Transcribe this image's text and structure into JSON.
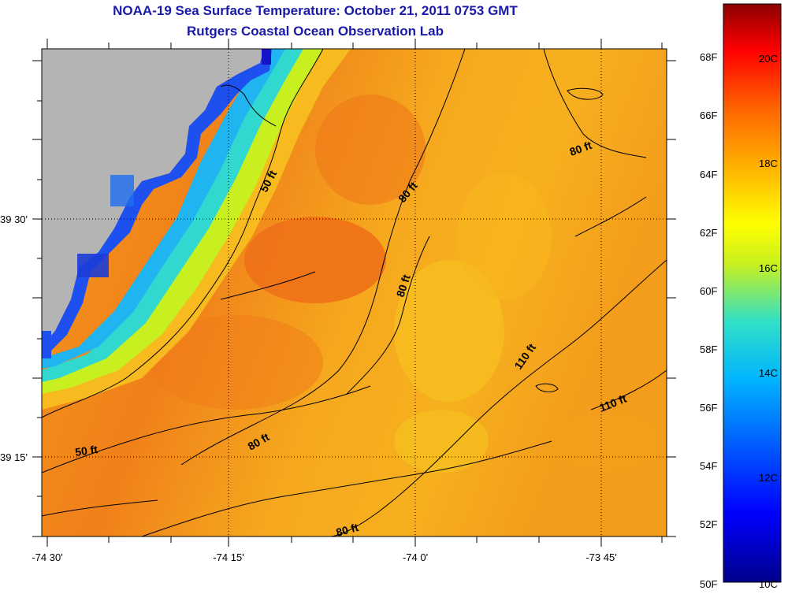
{
  "header": {
    "title": "NOAA-19 Sea Surface Temperature:  October 21, 2011 0753 GMT",
    "subtitle": "Rutgers Coastal Ocean Observation Lab"
  },
  "axes": {
    "lon_ticks": [
      "-74 30'",
      "-74 15'",
      "-74 0'",
      "-73 45'"
    ],
    "lat_ticks": [
      "39 30'",
      "39 15'"
    ]
  },
  "contour_labels": [
    {
      "id": "ctl-50-north",
      "text": "50 ft"
    },
    {
      "id": "ctl-80-north",
      "text": "80 ft"
    },
    {
      "id": "ctl-80-ne",
      "text": "80 ft"
    },
    {
      "id": "ctl-80-mid",
      "text": "80 ft"
    },
    {
      "id": "ctl-110-mid",
      "text": "110 ft"
    },
    {
      "id": "ctl-110-east",
      "text": "110 ft"
    },
    {
      "id": "ctl-50-south",
      "text": "50 ft"
    },
    {
      "id": "ctl-80-sw",
      "text": "80 ft"
    },
    {
      "id": "ctl-80-south",
      "text": "80 ft"
    }
  ],
  "colorbar": {
    "fahrenheit": [
      "68F",
      "66F",
      "64F",
      "62F",
      "60F",
      "58F",
      "56F",
      "54F",
      "52F",
      "50F"
    ],
    "celsius": [
      "20C",
      "18C",
      "16C",
      "14C",
      "12C",
      "10C"
    ]
  },
  "colors": {
    "land": "#b4b4b4",
    "title_text": "#1a1aa8",
    "sst_warm": "#f28a1a",
    "sst_mid": "#f6b21e",
    "sst_cool": "#29c8e8",
    "sst_cold": "#1e3cf0"
  }
}
